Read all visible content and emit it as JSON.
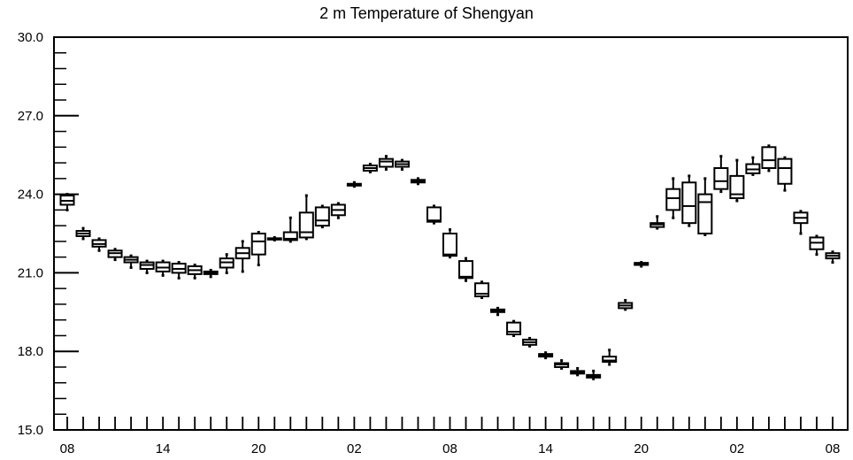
{
  "chart_data": {
    "type": "box",
    "title": "2 m Temperature of Shengyan",
    "xlabel": "",
    "ylabel": "",
    "ylim": [
      15.0,
      30.0
    ],
    "y_ticks": [
      "15.0",
      "18.0",
      "21.0",
      "24.0",
      "27.0",
      "30.0"
    ],
    "y_tick_values": [
      15.0,
      18.0,
      21.0,
      24.0,
      27.0,
      30.0
    ],
    "x_tick_labels": [
      "08",
      "14",
      "20",
      "02",
      "08",
      "14",
      "20",
      "02",
      "08"
    ],
    "x_tick_hours": [
      0,
      6,
      12,
      18,
      24,
      30,
      36,
      42,
      48
    ],
    "grid": false,
    "boxes": [
      {
        "hour": 0,
        "min": 23.4,
        "q1": 23.6,
        "median": 23.75,
        "q3": 23.95,
        "max": 24.0
      },
      {
        "hour": 1,
        "min": 22.3,
        "q1": 22.4,
        "median": 22.5,
        "q3": 22.6,
        "max": 22.7
      },
      {
        "hour": 2,
        "min": 21.85,
        "q1": 22.0,
        "median": 22.1,
        "q3": 22.25,
        "max": 22.3
      },
      {
        "hour": 3,
        "min": 21.5,
        "q1": 21.6,
        "median": 21.75,
        "q3": 21.85,
        "max": 21.9
      },
      {
        "hour": 4,
        "min": 21.2,
        "q1": 21.4,
        "median": 21.5,
        "q3": 21.6,
        "max": 21.65
      },
      {
        "hour": 5,
        "min": 21.0,
        "q1": 21.15,
        "median": 21.3,
        "q3": 21.4,
        "max": 21.45
      },
      {
        "hour": 6,
        "min": 20.9,
        "q1": 21.05,
        "median": 21.2,
        "q3": 21.4,
        "max": 21.45
      },
      {
        "hour": 7,
        "min": 20.8,
        "q1": 21.0,
        "median": 21.15,
        "q3": 21.35,
        "max": 21.4
      },
      {
        "hour": 8,
        "min": 20.8,
        "q1": 20.95,
        "median": 21.1,
        "q3": 21.25,
        "max": 21.3
      },
      {
        "hour": 9,
        "min": 20.85,
        "q1": 20.95,
        "median": 21.0,
        "q3": 21.05,
        "max": 21.1
      },
      {
        "hour": 10,
        "min": 21.0,
        "q1": 21.2,
        "median": 21.4,
        "q3": 21.55,
        "max": 21.7
      },
      {
        "hour": 11,
        "min": 21.05,
        "q1": 21.55,
        "median": 21.75,
        "q3": 21.95,
        "max": 22.2
      },
      {
        "hour": 12,
        "min": 21.3,
        "q1": 21.7,
        "median": 22.2,
        "q3": 22.5,
        "max": 22.55
      },
      {
        "hour": 13,
        "min": 22.25,
        "q1": 22.28,
        "median": 22.3,
        "q3": 22.32,
        "max": 22.35
      },
      {
        "hour": 14,
        "min": 22.2,
        "q1": 22.25,
        "median": 22.3,
        "q3": 22.55,
        "max": 23.1
      },
      {
        "hour": 15,
        "min": 22.3,
        "q1": 22.35,
        "median": 22.55,
        "q3": 23.3,
        "max": 23.95
      },
      {
        "hour": 16,
        "min": 22.75,
        "q1": 22.8,
        "median": 23.0,
        "q3": 23.5,
        "max": 23.55
      },
      {
        "hour": 17,
        "min": 23.1,
        "q1": 23.2,
        "median": 23.4,
        "q3": 23.6,
        "max": 23.65
      },
      {
        "hour": 18,
        "min": 24.3,
        "q1": 24.33,
        "median": 24.36,
        "q3": 24.4,
        "max": 24.45
      },
      {
        "hour": 19,
        "min": 24.85,
        "q1": 24.9,
        "median": 25.0,
        "q3": 25.1,
        "max": 25.15
      },
      {
        "hour": 20,
        "min": 24.95,
        "q1": 25.05,
        "median": 25.25,
        "q3": 25.35,
        "max": 25.45
      },
      {
        "hour": 21,
        "min": 24.95,
        "q1": 25.05,
        "median": 25.15,
        "q3": 25.25,
        "max": 25.3
      },
      {
        "hour": 22,
        "min": 24.4,
        "q1": 24.45,
        "median": 24.5,
        "q3": 24.55,
        "max": 24.6
      },
      {
        "hour": 23,
        "min": 22.9,
        "q1": 22.95,
        "median": 23.0,
        "q3": 23.5,
        "max": 23.55
      },
      {
        "hour": 24,
        "min": 21.6,
        "q1": 21.65,
        "median": 21.7,
        "q3": 22.5,
        "max": 22.65
      },
      {
        "hour": 25,
        "min": 20.7,
        "q1": 20.8,
        "median": 20.85,
        "q3": 21.45,
        "max": 21.55
      },
      {
        "hour": 26,
        "min": 20.05,
        "q1": 20.1,
        "median": 20.2,
        "q3": 20.6,
        "max": 20.65
      },
      {
        "hour": 27,
        "min": 19.4,
        "q1": 19.5,
        "median": 19.55,
        "q3": 19.6,
        "max": 19.65
      },
      {
        "hour": 28,
        "min": 18.6,
        "q1": 18.65,
        "median": 18.75,
        "q3": 19.1,
        "max": 19.15
      },
      {
        "hour": 29,
        "min": 18.2,
        "q1": 18.25,
        "median": 18.35,
        "q3": 18.45,
        "max": 18.5
      },
      {
        "hour": 30,
        "min": 17.75,
        "q1": 17.8,
        "median": 17.85,
        "q3": 17.9,
        "max": 17.95
      },
      {
        "hour": 31,
        "min": 17.35,
        "q1": 17.4,
        "median": 17.5,
        "q3": 17.55,
        "max": 17.65
      },
      {
        "hour": 32,
        "min": 17.1,
        "q1": 17.15,
        "median": 17.2,
        "q3": 17.25,
        "max": 17.35
      },
      {
        "hour": 33,
        "min": 16.95,
        "q1": 17.0,
        "median": 17.05,
        "q3": 17.1,
        "max": 17.25
      },
      {
        "hour": 34,
        "min": 17.5,
        "q1": 17.6,
        "median": 17.65,
        "q3": 17.8,
        "max": 18.05
      },
      {
        "hour": 35,
        "min": 19.6,
        "q1": 19.65,
        "median": 19.75,
        "q3": 19.85,
        "max": 19.95
      },
      {
        "hour": 36,
        "min": 21.25,
        "q1": 21.3,
        "median": 21.35,
        "q3": 21.38,
        "max": 21.4
      },
      {
        "hour": 37,
        "min": 22.7,
        "q1": 22.75,
        "median": 22.85,
        "q3": 22.9,
        "max": 23.15
      },
      {
        "hour": 38,
        "min": 23.1,
        "q1": 23.4,
        "median": 23.85,
        "q3": 24.2,
        "max": 24.6
      },
      {
        "hour": 39,
        "min": 22.8,
        "q1": 22.9,
        "median": 23.55,
        "q3": 24.45,
        "max": 24.7
      },
      {
        "hour": 40,
        "min": 22.45,
        "q1": 22.5,
        "median": 23.7,
        "q3": 24.0,
        "max": 24.6
      },
      {
        "hour": 41,
        "min": 24.1,
        "q1": 24.2,
        "median": 24.5,
        "q3": 25.0,
        "max": 25.45
      },
      {
        "hour": 42,
        "min": 23.75,
        "q1": 23.85,
        "median": 24.0,
        "q3": 24.7,
        "max": 25.3
      },
      {
        "hour": 43,
        "min": 24.75,
        "q1": 24.8,
        "median": 24.95,
        "q3": 25.15,
        "max": 25.4
      },
      {
        "hour": 44,
        "min": 24.9,
        "q1": 25.0,
        "median": 25.3,
        "q3": 25.8,
        "max": 25.85
      },
      {
        "hour": 45,
        "min": 24.15,
        "q1": 24.4,
        "median": 25.0,
        "q3": 25.35,
        "max": 25.4
      },
      {
        "hour": 46,
        "min": 22.5,
        "q1": 22.9,
        "median": 23.1,
        "q3": 23.3,
        "max": 23.35
      },
      {
        "hour": 47,
        "min": 21.7,
        "q1": 21.9,
        "median": 22.15,
        "q3": 22.35,
        "max": 22.4
      },
      {
        "hour": 48,
        "min": 21.4,
        "q1": 21.55,
        "median": 21.65,
        "q3": 21.75,
        "max": 21.8
      }
    ]
  }
}
